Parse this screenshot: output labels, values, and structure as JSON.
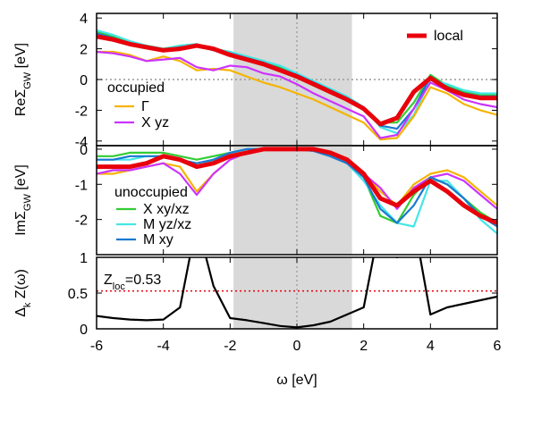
{
  "chart_data": [
    {
      "type": "line",
      "ylabel": "ReΣ",
      "ylabel_sub": "GW",
      "ylabel_unit": " [eV]",
      "legend_title": "occupied",
      "x": [
        -6,
        -5.5,
        -5,
        -4.5,
        -4,
        -3.5,
        -3,
        -2.5,
        -2,
        -1.5,
        -1,
        -0.5,
        0,
        0.5,
        1,
        1.5,
        2,
        2.5,
        3,
        3.5,
        4,
        4.5,
        5,
        5.5,
        6
      ],
      "xlim": [
        -6,
        6
      ],
      "xticks": [
        -6,
        -4,
        -2,
        0,
        2,
        4,
        6
      ],
      "ylim": [
        -4.3,
        4.3
      ],
      "yticks": [
        -4,
        -2,
        0,
        2,
        4
      ],
      "shade": [
        -1.9,
        1.65
      ],
      "vline": 0,
      "hline": {
        "value": 0,
        "color": "#999999"
      },
      "series": [
        {
          "color": "#33cc33",
          "values": [
            3.1,
            2.8,
            2.4,
            2.2,
            2.0,
            2.2,
            2.3,
            2.0,
            1.8,
            1.5,
            1.2,
            0.8,
            0.3,
            -0.2,
            -0.7,
            -1.2,
            -1.8,
            -2.8,
            -2.8,
            -1.5,
            0.3,
            -0.4,
            -0.8,
            -1.0,
            -1.0
          ]
        },
        {
          "color": "#44e6e6",
          "values": [
            3.2,
            2.9,
            2.5,
            2.2,
            2.0,
            2.2,
            2.3,
            2.0,
            1.8,
            1.5,
            1.2,
            0.9,
            0.4,
            -0.1,
            -0.6,
            -1.1,
            -1.8,
            -3.1,
            -3.5,
            -2.3,
            0.0,
            -0.3,
            -0.7,
            -0.9,
            -0.9
          ]
        },
        {
          "color": "#1a78d2",
          "values": [
            3.0,
            2.7,
            2.3,
            2.1,
            1.9,
            2.1,
            2.2,
            1.9,
            1.7,
            1.4,
            1.1,
            0.7,
            0.3,
            -0.2,
            -0.7,
            -1.2,
            -1.8,
            -3.0,
            -3.2,
            -1.9,
            0.2,
            -0.5,
            -0.9,
            -1.1,
            -1.1
          ]
        },
        {
          "name": "Γ",
          "color": "#f5b400",
          "values": [
            1.8,
            1.8,
            1.6,
            1.2,
            1.5,
            1.2,
            0.6,
            0.7,
            0.6,
            0.2,
            -0.2,
            -0.5,
            -0.9,
            -1.3,
            -1.8,
            -2.3,
            -2.8,
            -3.9,
            -3.8,
            -2.4,
            -0.5,
            -0.9,
            -1.6,
            -2.0,
            -2.3
          ]
        },
        {
          "name": "X yz",
          "color": "#cc33ff",
          "values": [
            1.8,
            1.7,
            1.5,
            1.2,
            1.3,
            1.4,
            0.8,
            0.6,
            0.9,
            0.8,
            0.4,
            0.2,
            -0.3,
            -0.9,
            -1.4,
            -1.9,
            -2.4,
            -3.8,
            -3.6,
            -1.9,
            -0.2,
            -0.7,
            -1.3,
            -1.6,
            -1.8
          ]
        },
        {
          "name": "local",
          "color": "#e8000b",
          "thick": true,
          "values": [
            2.8,
            2.6,
            2.3,
            2.1,
            1.9,
            2.0,
            2.2,
            2.0,
            1.6,
            1.3,
            1.0,
            0.6,
            0.2,
            -0.3,
            -0.8,
            -1.3,
            -1.9,
            -2.9,
            -2.5,
            -0.8,
            0.1,
            -0.6,
            -1.0,
            -1.2,
            -1.2
          ]
        }
      ]
    },
    {
      "type": "line",
      "ylabel": "ImΣ",
      "ylabel_sub": "GW",
      "ylabel_unit": " [eV]",
      "legend_title": "unoccupied",
      "x": [
        -6,
        -5.5,
        -5,
        -4.5,
        -4,
        -3.5,
        -3,
        -2.5,
        -2,
        -1.5,
        -1,
        -0.5,
        0,
        0.5,
        1,
        1.5,
        2,
        2.5,
        3,
        3.5,
        4,
        4.5,
        5,
        5.5,
        6
      ],
      "xlim": [
        -6,
        6
      ],
      "xticks": [
        -6,
        -4,
        -2,
        0,
        2,
        4,
        6
      ],
      "ylim": [
        -3,
        0.1
      ],
      "yticks": [
        -2,
        -1,
        0
      ],
      "shade": [
        -1.9,
        1.65
      ],
      "vline": 0,
      "series": [
        {
          "color": "#f5b400",
          "values": [
            -0.7,
            -0.7,
            -0.6,
            -0.5,
            -0.4,
            -0.5,
            -1.2,
            -0.7,
            -0.3,
            -0.1,
            0,
            0,
            0,
            -0.05,
            -0.2,
            -0.4,
            -0.7,
            -1.2,
            -1.6,
            -1.0,
            -0.7,
            -0.6,
            -0.8,
            -1.2,
            -1.6
          ]
        },
        {
          "color": "#cc33ff",
          "values": [
            -0.7,
            -0.6,
            -0.6,
            -0.5,
            -0.4,
            -0.7,
            -1.3,
            -0.7,
            -0.3,
            -0.1,
            0,
            0,
            0,
            -0.05,
            -0.2,
            -0.4,
            -0.7,
            -1.1,
            -1.7,
            -1.1,
            -0.8,
            -0.7,
            -0.9,
            -1.3,
            -1.7
          ]
        },
        {
          "name": "X xy/xz",
          "color": "#33cc33",
          "values": [
            -0.2,
            -0.2,
            -0.1,
            -0.1,
            -0.1,
            -0.2,
            -0.3,
            -0.2,
            -0.1,
            0,
            0,
            0,
            0,
            -0.05,
            -0.15,
            -0.35,
            -0.8,
            -1.9,
            -2.1,
            -1.3,
            -0.8,
            -1.0,
            -1.4,
            -1.8,
            -2.1
          ]
        },
        {
          "name": "M yz/xz",
          "color": "#44e6e6",
          "values": [
            -0.3,
            -0.3,
            -0.3,
            -0.2,
            -0.2,
            -0.3,
            -0.5,
            -0.3,
            -0.1,
            0,
            0,
            0,
            0,
            -0.05,
            -0.2,
            -0.4,
            -0.9,
            -1.6,
            -2.1,
            -2.2,
            -0.9,
            -0.9,
            -1.4,
            -2.0,
            -2.4
          ]
        },
        {
          "name": "M xy",
          "color": "#1a78d2",
          "values": [
            -0.3,
            -0.3,
            -0.2,
            -0.2,
            -0.2,
            -0.3,
            -0.4,
            -0.3,
            -0.1,
            0,
            0,
            0,
            0,
            -0.05,
            -0.2,
            -0.4,
            -0.8,
            -1.7,
            -2.1,
            -1.6,
            -0.8,
            -1.0,
            -1.4,
            -1.9,
            -2.2
          ]
        },
        {
          "color": "#e8000b",
          "thick": true,
          "values": [
            -0.5,
            -0.5,
            -0.5,
            -0.4,
            -0.2,
            -0.3,
            -0.5,
            -0.4,
            -0.2,
            -0.1,
            0,
            0,
            0,
            0,
            -0.1,
            -0.3,
            -0.7,
            -1.4,
            -1.6,
            -1.2,
            -0.9,
            -1.2,
            -1.6,
            -1.9,
            -2.1
          ]
        }
      ]
    },
    {
      "type": "line",
      "ylabel": "Δ",
      "ylabel_sub": "k",
      "ylabel_unit": " Z(ω)",
      "xlabel": "ω [eV]",
      "annotation": "Z",
      "annotation_sub": "loc",
      "annotation_rest": "=0.53",
      "x": [
        -6,
        -5.5,
        -5,
        -4.5,
        -4,
        -3.5,
        -3,
        -2.5,
        -2,
        -1.5,
        -1,
        -0.5,
        0,
        0.5,
        1,
        1.5,
        2,
        2.5,
        3,
        3.5,
        4,
        4.5,
        5,
        5.5,
        6
      ],
      "xlim": [
        -6,
        6
      ],
      "xticks": [
        -6,
        -4,
        -2,
        0,
        2,
        4,
        6
      ],
      "ylim": [
        0,
        1
      ],
      "yticks": [
        0,
        0.5,
        1
      ],
      "shade": [
        -1.9,
        1.65
      ],
      "vline": 0,
      "hline": {
        "value": 0.53,
        "color": "#e8000b"
      },
      "series": [
        {
          "color": "#000000",
          "values": [
            0.18,
            0.15,
            0.13,
            0.12,
            0.13,
            0.3,
            1.5,
            0.6,
            0.15,
            0.12,
            0.08,
            0.04,
            0.02,
            0.05,
            0.1,
            0.2,
            0.3,
            1.5,
            1.0,
            1.5,
            0.2,
            0.3,
            0.35,
            0.4,
            0.45
          ]
        }
      ]
    }
  ]
}
